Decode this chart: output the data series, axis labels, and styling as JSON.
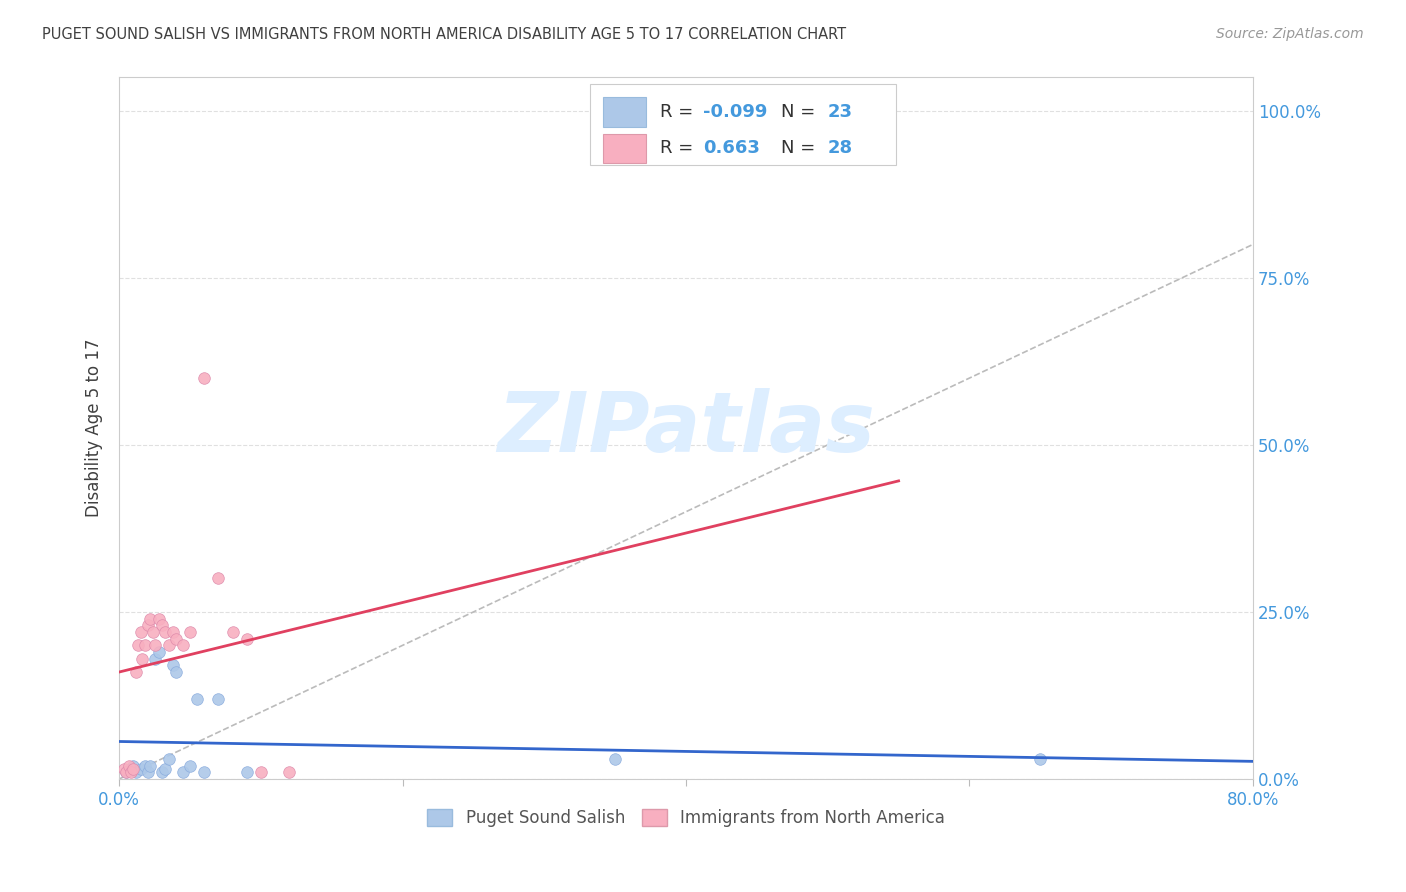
{
  "title": "PUGET SOUND SALISH VS IMMIGRANTS FROM NORTH AMERICA DISABILITY AGE 5 TO 17 CORRELATION CHART",
  "source": "Source: ZipAtlas.com",
  "ylabel": "Disability Age 5 to 17",
  "xlim": [
    0.0,
    0.8
  ],
  "ylim": [
    0.0,
    1.05
  ],
  "xticks": [
    0.0,
    0.2,
    0.4,
    0.6,
    0.8
  ],
  "xtick_labels": [
    "0.0%",
    "",
    "",
    "",
    "80.0%"
  ],
  "yticks": [
    0.0,
    0.25,
    0.5,
    0.75,
    1.0
  ],
  "ytick_labels": [
    "0.0%",
    "25.0%",
    "50.0%",
    "75.0%",
    "100.0%"
  ],
  "blue_R": -0.099,
  "blue_N": 23,
  "pink_R": 0.663,
  "pink_N": 28,
  "blue_color": "#adc8e8",
  "pink_color": "#f8afc0",
  "blue_line_color": "#3366cc",
  "pink_line_color": "#e04060",
  "diagonal_color": "#bbbbbb",
  "grid_color": "#e0e0e0",
  "title_color": "#404040",
  "ylabel_color": "#404040",
  "tick_color": "#4499dd",
  "blue_scatter_x": [
    0.005,
    0.008,
    0.01,
    0.012,
    0.015,
    0.018,
    0.02,
    0.022,
    0.025,
    0.028,
    0.03,
    0.032,
    0.035,
    0.038,
    0.04,
    0.045,
    0.05,
    0.055,
    0.06,
    0.07,
    0.09,
    0.35,
    0.65
  ],
  "blue_scatter_y": [
    0.01,
    0.015,
    0.02,
    0.01,
    0.015,
    0.02,
    0.01,
    0.02,
    0.18,
    0.19,
    0.01,
    0.015,
    0.03,
    0.17,
    0.16,
    0.01,
    0.02,
    0.12,
    0.01,
    0.12,
    0.01,
    0.03,
    0.03
  ],
  "pink_scatter_x": [
    0.003,
    0.005,
    0.007,
    0.008,
    0.01,
    0.012,
    0.013,
    0.015,
    0.016,
    0.018,
    0.02,
    0.022,
    0.024,
    0.025,
    0.028,
    0.03,
    0.032,
    0.035,
    0.038,
    0.04,
    0.045,
    0.05,
    0.06,
    0.07,
    0.08,
    0.09,
    0.1,
    0.12
  ],
  "pink_scatter_y": [
    0.015,
    0.01,
    0.02,
    0.01,
    0.015,
    0.16,
    0.2,
    0.22,
    0.18,
    0.2,
    0.23,
    0.24,
    0.22,
    0.2,
    0.24,
    0.23,
    0.22,
    0.2,
    0.22,
    0.21,
    0.2,
    0.22,
    0.6,
    0.3,
    0.22,
    0.21,
    0.01,
    0.01
  ],
  "marker_size": 70,
  "legend_label_blue": "Puget Sound Salish",
  "legend_label_pink": "Immigrants from North America"
}
